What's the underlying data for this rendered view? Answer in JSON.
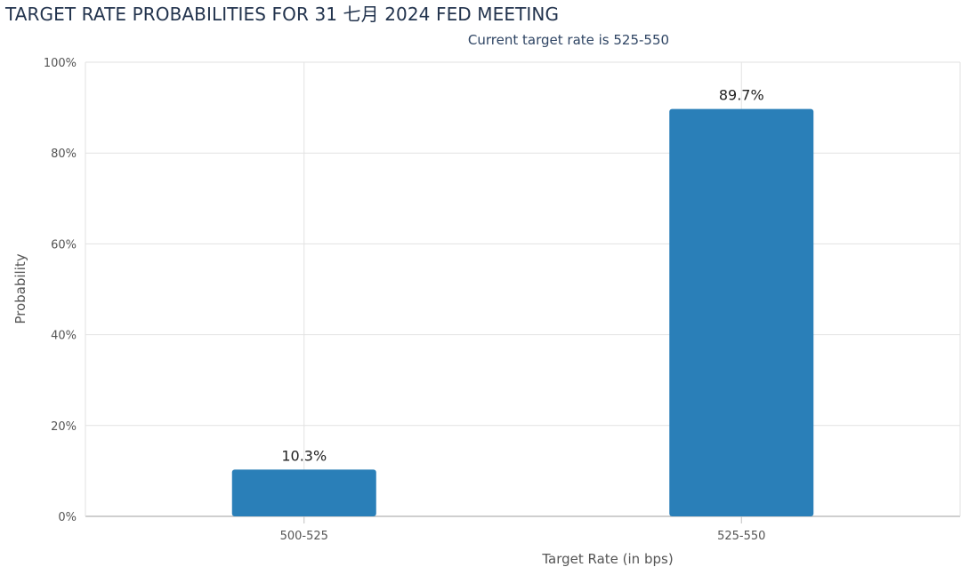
{
  "chart_data": {
    "type": "bar",
    "title": "TARGET RATE PROBABILITIES FOR 31 七月 2024 FED MEETING",
    "subtitle": "Current target rate is 525-550",
    "xlabel": "Target Rate (in bps)",
    "ylabel": "Probability",
    "categories": [
      "500-525",
      "525-550"
    ],
    "values": [
      10.3,
      89.7
    ],
    "data_labels": [
      "10.3%",
      "89.7%"
    ],
    "ylim": [
      0,
      100
    ],
    "yticks": [
      0,
      20,
      40,
      60,
      80,
      100
    ],
    "ytick_labels": [
      "0%",
      "20%",
      "40%",
      "60%",
      "80%",
      "100%"
    ],
    "grid": true,
    "legend": "none",
    "bar_color": "#2a7fb8"
  }
}
